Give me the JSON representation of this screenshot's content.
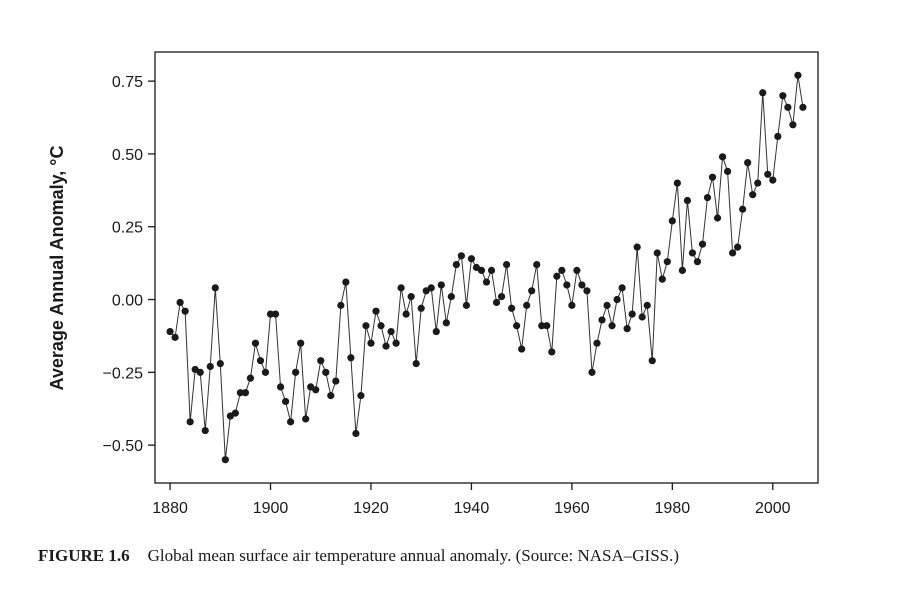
{
  "caption": {
    "label": "FIGURE 1.6",
    "text": "Global mean surface air temperature annual anomaly. (Source: NASA–GISS.)"
  },
  "chart_data": {
    "type": "line",
    "title": "",
    "xlabel": "",
    "ylabel": "Average Annual Anomaly, °C",
    "xlim": [
      1877,
      2009
    ],
    "ylim": [
      -0.63,
      0.85
    ],
    "x_ticks": [
      1880,
      1900,
      1920,
      1940,
      1960,
      1980,
      2000
    ],
    "x_tick_labels": [
      "1880",
      "1900",
      "1920",
      "1940",
      "1960",
      "1980",
      "2000"
    ],
    "y_ticks": [
      0.75,
      0.5,
      0.25,
      0.0,
      -0.25,
      -0.5
    ],
    "y_tick_labels": [
      "0.75",
      "0.50",
      "0.25",
      "0.00",
      "−0.25",
      "−0.50"
    ],
    "grid": false,
    "colors": {
      "line": "#333333",
      "marker": "#1a1a1a",
      "axis": "#1a1a1a"
    },
    "series": [
      {
        "x": [
          1880,
          1881,
          1882,
          1883,
          1884,
          1885,
          1886,
          1887,
          1888,
          1889,
          1890,
          1891,
          1892,
          1893,
          1894,
          1895,
          1896,
          1897,
          1898,
          1899,
          1900,
          1901,
          1902,
          1903,
          1904,
          1905,
          1906,
          1907,
          1908,
          1909,
          1910,
          1911,
          1912,
          1913,
          1914,
          1915,
          1916,
          1917,
          1918,
          1919,
          1920,
          1921,
          1922,
          1923,
          1924,
          1925,
          1926,
          1927,
          1928,
          1929,
          1930,
          1931,
          1932,
          1933,
          1934,
          1935,
          1936,
          1937,
          1938,
          1939,
          1940,
          1941,
          1942,
          1943,
          1944,
          1945,
          1946,
          1947,
          1948,
          1949,
          1950,
          1951,
          1952,
          1953,
          1954,
          1955,
          1956,
          1957,
          1958,
          1959,
          1960,
          1961,
          1962,
          1963,
          1964,
          1965,
          1966,
          1967,
          1968,
          1969,
          1970,
          1971,
          1972,
          1973,
          1974,
          1975,
          1976,
          1977,
          1978,
          1979,
          1980,
          1981,
          1982,
          1983,
          1984,
          1985,
          1986,
          1987,
          1988,
          1989,
          1990,
          1991,
          1992,
          1993,
          1994,
          1995,
          1996,
          1997,
          1998,
          1999,
          2000,
          2001,
          2002,
          2003,
          2004,
          2005,
          2006
        ],
        "y": [
          -0.11,
          -0.13,
          -0.01,
          -0.04,
          -0.42,
          -0.24,
          -0.25,
          -0.45,
          -0.23,
          0.04,
          -0.22,
          -0.55,
          -0.4,
          -0.39,
          -0.32,
          -0.32,
          -0.27,
          -0.15,
          -0.21,
          -0.25,
          -0.05,
          -0.05,
          -0.3,
          -0.35,
          -0.42,
          -0.25,
          -0.15,
          -0.41,
          -0.3,
          -0.31,
          -0.21,
          -0.25,
          -0.33,
          -0.28,
          -0.02,
          0.06,
          -0.2,
          -0.46,
          -0.33,
          -0.09,
          -0.15,
          -0.04,
          -0.09,
          -0.16,
          -0.11,
          -0.15,
          0.04,
          -0.05,
          0.01,
          -0.22,
          -0.03,
          0.03,
          0.04,
          -0.11,
          0.05,
          -0.08,
          0.01,
          0.12,
          0.15,
          -0.02,
          0.14,
          0.11,
          0.1,
          0.06,
          0.1,
          -0.01,
          0.01,
          0.12,
          -0.03,
          -0.09,
          -0.17,
          -0.02,
          0.03,
          0.12,
          -0.09,
          -0.09,
          -0.18,
          0.08,
          0.1,
          0.05,
          -0.02,
          0.1,
          0.05,
          0.03,
          -0.25,
          -0.15,
          -0.07,
          -0.02,
          -0.09,
          0.0,
          0.04,
          -0.1,
          -0.05,
          0.18,
          -0.06,
          -0.02,
          -0.21,
          0.16,
          0.07,
          0.13,
          0.27,
          0.4,
          0.1,
          0.34,
          0.16,
          0.13,
          0.19,
          0.35,
          0.42,
          0.28,
          0.49,
          0.44,
          0.16,
          0.18,
          0.31,
          0.47,
          0.36,
          0.4,
          0.71,
          0.43,
          0.41,
          0.56,
          0.7,
          0.66,
          0.6,
          0.77,
          0.66
        ]
      }
    ]
  }
}
